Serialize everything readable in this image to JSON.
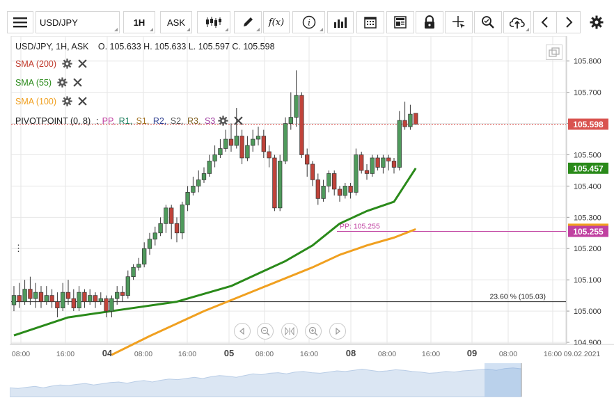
{
  "toolbar": {
    "symbol": "USD/JPY",
    "interval": "1H",
    "price_type": "ASK",
    "buttons": [
      {
        "name": "candle-type-button",
        "icon": "candlestick-icon"
      },
      {
        "name": "draw-tool-button",
        "icon": "pencil-icon"
      },
      {
        "name": "indicators-button",
        "icon": "function-icon",
        "text": "f(x)"
      },
      {
        "name": "info-button",
        "icon": "info-icon",
        "text": "i"
      },
      {
        "name": "volume-button",
        "icon": "bar-chart-icon"
      },
      {
        "name": "calendar-button",
        "icon": "calendar-icon"
      },
      {
        "name": "news-button",
        "icon": "newspaper-icon"
      },
      {
        "name": "lock-button",
        "icon": "lock-icon"
      },
      {
        "name": "crosshair-button",
        "icon": "crosshair-icon"
      },
      {
        "name": "zoom-button",
        "icon": "zoom-icon"
      },
      {
        "name": "cloud-button",
        "icon": "cloud-upload-icon"
      },
      {
        "name": "prev-button",
        "icon": "chevron-left-icon"
      },
      {
        "name": "next-button",
        "icon": "chevron-right-icon"
      },
      {
        "name": "settings-button",
        "icon": "gear-icon"
      }
    ]
  },
  "legend": {
    "header": "USD/JPY, 1H, ASK",
    "ohlc": "O. 105.633  H. 105.633  L. 105.597  C. 105.598",
    "indicators": [
      {
        "label": "SMA (200)",
        "color": "#c0392b"
      },
      {
        "label": "SMA (55)",
        "color": "#2a8a1a"
      },
      {
        "label": "SMA (100)",
        "color": "#f0a020"
      }
    ],
    "pivot": {
      "label": "PIVOTPOINT (0, 8)",
      "sep": ":",
      "items": [
        {
          "text": "PP,",
          "color": "#c040a0"
        },
        {
          "text": "R1,",
          "color": "#208060"
        },
        {
          "text": "S1,",
          "color": "#a07020"
        },
        {
          "text": "R2,",
          "color": "#304090"
        },
        {
          "text": "S2,",
          "color": "#555555"
        },
        {
          "text": "R3,",
          "color": "#806020"
        },
        {
          "text": "S3",
          "color": "#a040a0"
        }
      ]
    }
  },
  "chart_data": {
    "type": "candlestick",
    "symbol": "USD/JPY",
    "interval": "1H",
    "y_ticks": [
      "105.800",
      "105.700",
      "105.600",
      "105.500",
      "105.400",
      "105.300",
      "105.200",
      "105.100",
      "105.000",
      "104.900"
    ],
    "ylim": [
      104.9,
      105.835
    ],
    "x_ticks": [
      "08:00",
      "16:00",
      "04",
      "08:00",
      "16:00",
      "05",
      "08:00",
      "16:00",
      "08",
      "08:00",
      "16:00",
      "09",
      "08:00",
      "16:00",
      "09.02.2021"
    ],
    "x_tick_bold": [
      false,
      false,
      true,
      false,
      false,
      true,
      false,
      false,
      true,
      false,
      false,
      true,
      false,
      false,
      false
    ],
    "candles": [
      {
        "o": 105.02,
        "c": 105.05,
        "h": 105.08,
        "l": 105.0
      },
      {
        "o": 105.05,
        "c": 105.03,
        "h": 105.09,
        "l": 105.01
      },
      {
        "o": 105.03,
        "c": 105.07,
        "h": 105.1,
        "l": 105.02
      },
      {
        "o": 105.07,
        "c": 105.04,
        "h": 105.11,
        "l": 105.02
      },
      {
        "o": 105.04,
        "c": 105.06,
        "h": 105.09,
        "l": 105.01
      },
      {
        "o": 105.06,
        "c": 105.03,
        "h": 105.08,
        "l": 105.01
      },
      {
        "o": 105.03,
        "c": 105.05,
        "h": 105.08,
        "l": 105.02
      },
      {
        "o": 105.05,
        "c": 105.03,
        "h": 105.07,
        "l": 105.01
      },
      {
        "o": 105.03,
        "c": 105.01,
        "h": 105.06,
        "l": 104.98
      },
      {
        "o": 105.01,
        "c": 105.06,
        "h": 105.09,
        "l": 105.0
      },
      {
        "o": 105.06,
        "c": 105.04,
        "h": 105.1,
        "l": 105.02
      },
      {
        "o": 105.04,
        "c": 105.01,
        "h": 105.07,
        "l": 105.0
      },
      {
        "o": 105.01,
        "c": 105.06,
        "h": 105.08,
        "l": 105.0
      },
      {
        "o": 105.06,
        "c": 105.03,
        "h": 105.07,
        "l": 105.01
      },
      {
        "o": 105.03,
        "c": 105.05,
        "h": 105.07,
        "l": 105.02
      },
      {
        "o": 105.05,
        "c": 105.03,
        "h": 105.06,
        "l": 105.01
      },
      {
        "o": 105.03,
        "c": 105.04,
        "h": 105.06,
        "l": 105.02
      },
      {
        "o": 105.04,
        "c": 105.0,
        "h": 105.05,
        "l": 104.98
      },
      {
        "o": 105.0,
        "c": 105.04,
        "h": 105.05,
        "l": 104.98
      },
      {
        "o": 105.04,
        "c": 105.06,
        "h": 105.08,
        "l": 105.02
      },
      {
        "o": 105.06,
        "c": 105.05,
        "h": 105.08,
        "l": 105.03
      },
      {
        "o": 105.05,
        "c": 105.11,
        "h": 105.13,
        "l": 105.04
      },
      {
        "o": 105.11,
        "c": 105.14,
        "h": 105.15,
        "l": 105.1
      },
      {
        "o": 105.14,
        "c": 105.15,
        "h": 105.17,
        "l": 105.13
      },
      {
        "o": 105.15,
        "c": 105.2,
        "h": 105.22,
        "l": 105.14
      },
      {
        "o": 105.2,
        "c": 105.23,
        "h": 105.25,
        "l": 105.18
      },
      {
        "o": 105.23,
        "c": 105.25,
        "h": 105.27,
        "l": 105.21
      },
      {
        "o": 105.25,
        "c": 105.28,
        "h": 105.3,
        "l": 105.24
      },
      {
        "o": 105.28,
        "c": 105.33,
        "h": 105.34,
        "l": 105.25
      },
      {
        "o": 105.33,
        "c": 105.28,
        "h": 105.34,
        "l": 105.23
      },
      {
        "o": 105.28,
        "c": 105.25,
        "h": 105.3,
        "l": 105.22
      },
      {
        "o": 105.25,
        "c": 105.34,
        "h": 105.35,
        "l": 105.23
      },
      {
        "o": 105.34,
        "c": 105.38,
        "h": 105.4,
        "l": 105.32
      },
      {
        "o": 105.38,
        "c": 105.4,
        "h": 105.43,
        "l": 105.37
      },
      {
        "o": 105.4,
        "c": 105.42,
        "h": 105.45,
        "l": 105.38
      },
      {
        "o": 105.42,
        "c": 105.44,
        "h": 105.46,
        "l": 105.41
      },
      {
        "o": 105.44,
        "c": 105.48,
        "h": 105.5,
        "l": 105.43
      },
      {
        "o": 105.48,
        "c": 105.5,
        "h": 105.53,
        "l": 105.46
      },
      {
        "o": 105.5,
        "c": 105.52,
        "h": 105.55,
        "l": 105.49
      },
      {
        "o": 105.52,
        "c": 105.55,
        "h": 105.58,
        "l": 105.51
      },
      {
        "o": 105.55,
        "c": 105.53,
        "h": 105.6,
        "l": 105.51
      },
      {
        "o": 105.53,
        "c": 105.56,
        "h": 105.65,
        "l": 105.52
      },
      {
        "o": 105.56,
        "c": 105.49,
        "h": 105.58,
        "l": 105.47
      },
      {
        "o": 105.49,
        "c": 105.53,
        "h": 105.56,
        "l": 105.48
      },
      {
        "o": 105.53,
        "c": 105.55,
        "h": 105.58,
        "l": 105.51
      },
      {
        "o": 105.55,
        "c": 105.56,
        "h": 105.59,
        "l": 105.53
      },
      {
        "o": 105.56,
        "c": 105.51,
        "h": 105.58,
        "l": 105.49
      },
      {
        "o": 105.51,
        "c": 105.49,
        "h": 105.53,
        "l": 105.46
      },
      {
        "o": 105.49,
        "c": 105.33,
        "h": 105.5,
        "l": 105.32
      },
      {
        "o": 105.33,
        "c": 105.48,
        "h": 105.5,
        "l": 105.32
      },
      {
        "o": 105.48,
        "c": 105.6,
        "h": 105.62,
        "l": 105.47
      },
      {
        "o": 105.6,
        "c": 105.62,
        "h": 105.7,
        "l": 105.58
      },
      {
        "o": 105.62,
        "c": 105.69,
        "h": 105.77,
        "l": 105.59
      },
      {
        "o": 105.69,
        "c": 105.5,
        "h": 105.7,
        "l": 105.49
      },
      {
        "o": 105.5,
        "c": 105.47,
        "h": 105.52,
        "l": 105.43
      },
      {
        "o": 105.47,
        "c": 105.42,
        "h": 105.48,
        "l": 105.4
      },
      {
        "o": 105.42,
        "c": 105.36,
        "h": 105.44,
        "l": 105.34
      },
      {
        "o": 105.36,
        "c": 105.4,
        "h": 105.42,
        "l": 105.35
      },
      {
        "o": 105.4,
        "c": 105.44,
        "h": 105.45,
        "l": 105.38
      },
      {
        "o": 105.44,
        "c": 105.39,
        "h": 105.45,
        "l": 105.37
      },
      {
        "o": 105.39,
        "c": 105.37,
        "h": 105.4,
        "l": 105.35
      },
      {
        "o": 105.37,
        "c": 105.4,
        "h": 105.41,
        "l": 105.36
      },
      {
        "o": 105.4,
        "c": 105.38,
        "h": 105.41,
        "l": 105.36
      },
      {
        "o": 105.38,
        "c": 105.5,
        "h": 105.52,
        "l": 105.37
      },
      {
        "o": 105.5,
        "c": 105.45,
        "h": 105.51,
        "l": 105.44
      },
      {
        "o": 105.45,
        "c": 105.44,
        "h": 105.47,
        "l": 105.42
      },
      {
        "o": 105.44,
        "c": 105.49,
        "h": 105.5,
        "l": 105.43
      },
      {
        "o": 105.49,
        "c": 105.46,
        "h": 105.5,
        "l": 105.45
      },
      {
        "o": 105.46,
        "c": 105.49,
        "h": 105.5,
        "l": 105.44
      },
      {
        "o": 105.49,
        "c": 105.48,
        "h": 105.5,
        "l": 105.45
      },
      {
        "o": 105.48,
        "c": 105.46,
        "h": 105.49,
        "l": 105.44
      },
      {
        "o": 105.46,
        "c": 105.61,
        "h": 105.64,
        "l": 105.45
      },
      {
        "o": 105.61,
        "c": 105.59,
        "h": 105.67,
        "l": 105.58
      },
      {
        "o": 105.59,
        "c": 105.63,
        "h": 105.66,
        "l": 105.58
      },
      {
        "o": 105.633,
        "c": 105.598,
        "h": 105.633,
        "l": 105.597
      }
    ],
    "sma55_points": [
      [
        0,
        104.922
      ],
      [
        10,
        104.98
      ],
      [
        20,
        105.005
      ],
      [
        30,
        105.03
      ],
      [
        40,
        105.08
      ],
      [
        50,
        105.16
      ],
      [
        55,
        105.21
      ],
      [
        60,
        105.28
      ],
      [
        65,
        105.32
      ],
      [
        70,
        105.35
      ],
      [
        74,
        105.457
      ]
    ],
    "sma100_points": [
      [
        18,
        104.86
      ],
      [
        25,
        104.92
      ],
      [
        35,
        105.0
      ],
      [
        45,
        105.07
      ],
      [
        55,
        105.14
      ],
      [
        60,
        105.18
      ],
      [
        65,
        105.21
      ],
      [
        70,
        105.235
      ],
      [
        74,
        105.262
      ]
    ],
    "pivot": {
      "label": "PP: 105.255",
      "value": 105.255
    },
    "fib": {
      "label": "23.60 % (105.03)",
      "value": 105.03
    },
    "last_price": {
      "label": "105.598",
      "value": 105.598,
      "color": "#d9534f"
    },
    "sma55_last": {
      "label": "105.457",
      "value": 105.457,
      "color": "#2a8a1a"
    },
    "sma100_last": {
      "value": 105.262,
      "color": "#f0a020"
    },
    "pp_last": {
      "label": "105.255",
      "value": 105.255,
      "color": "#c040a0"
    },
    "colors": {
      "up": "#4f9a5c",
      "down": "#c0433a",
      "grid": "#e6e6e6"
    },
    "grid": true,
    "overview_values": [
      0.3,
      0.28,
      0.32,
      0.35,
      0.3,
      0.36,
      0.4,
      0.38,
      0.42,
      0.45,
      0.4,
      0.44,
      0.48,
      0.5,
      0.46,
      0.52,
      0.55,
      0.5,
      0.56,
      0.6,
      0.58,
      0.62,
      0.66,
      0.62,
      0.68,
      0.72,
      0.7,
      0.66,
      0.72,
      0.78,
      0.75,
      0.8,
      0.82,
      0.78,
      0.84,
      0.86,
      0.82,
      0.8,
      0.84,
      0.88,
      0.86,
      0.9,
      0.94,
      0.9,
      0.86,
      0.88,
      0.92,
      0.9,
      0.86,
      0.84,
      0.8,
      0.82,
      0.86,
      0.84,
      0.88,
      0.9,
      0.92,
      0.94,
      0.9,
      0.96,
      0.98,
      0.95
    ]
  }
}
